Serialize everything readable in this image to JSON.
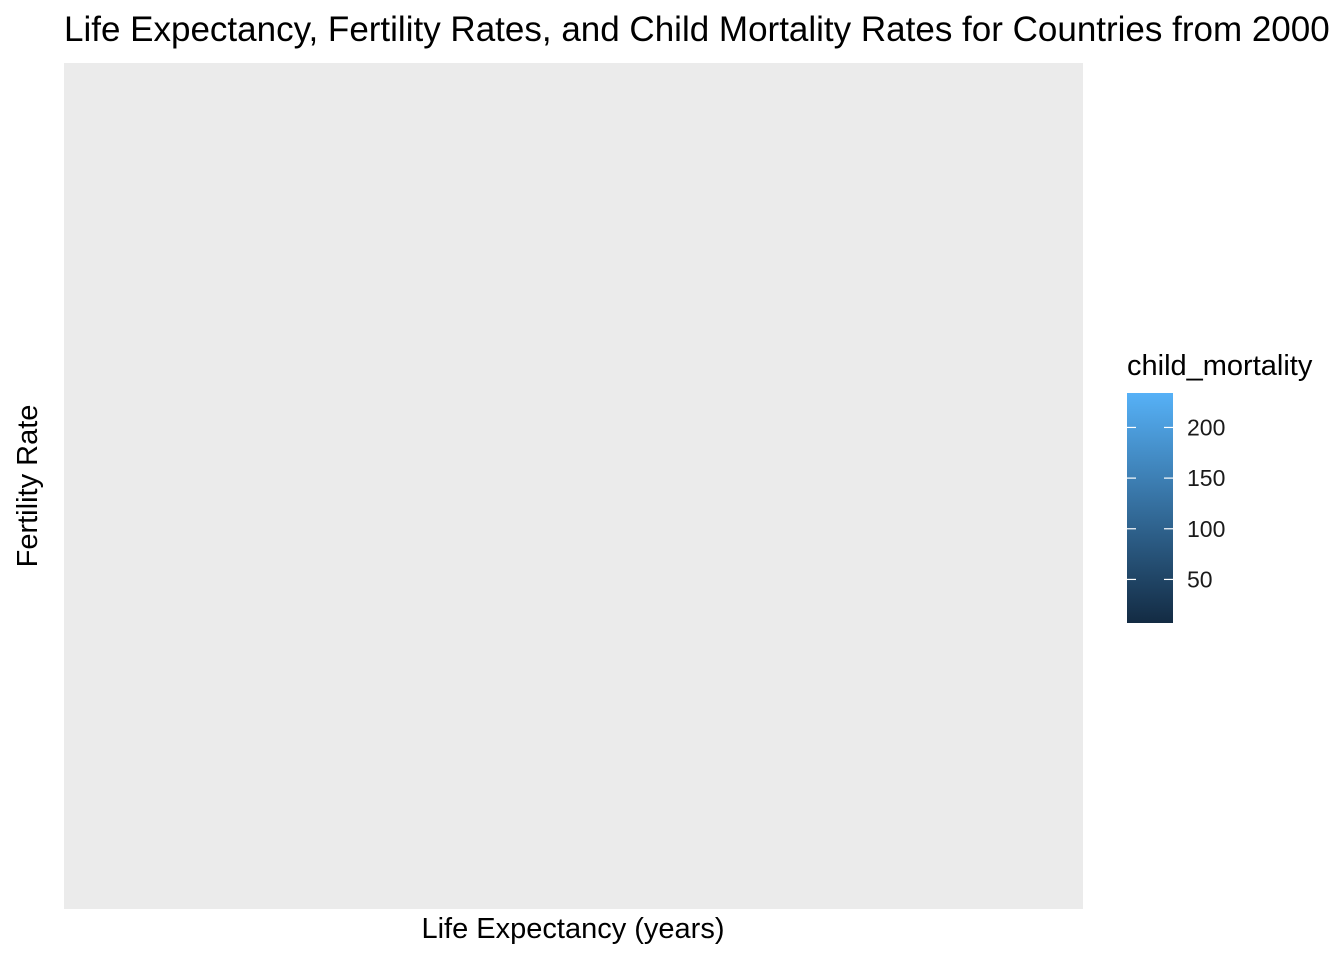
{
  "chart_data": {
    "type": "scatter",
    "title": "Life Expectancy, Fertility Rates, and Child Mortality Rates for Countries from 2000",
    "xlabel": "Life Expectancy (years)",
    "ylabel": "Fertility Rate",
    "points": [],
    "grid": false,
    "legend": {
      "title": "child_mortality",
      "position": "right",
      "type": "continuous-colorbar",
      "range": [
        7,
        234
      ],
      "ticks": [
        50,
        100,
        150,
        200
      ],
      "tick_labels": [
        "50",
        "100",
        "150",
        "200"
      ],
      "color_low": "#132B43",
      "color_high": "#56B1F7"
    },
    "panel_background": "#EBEBEB"
  }
}
